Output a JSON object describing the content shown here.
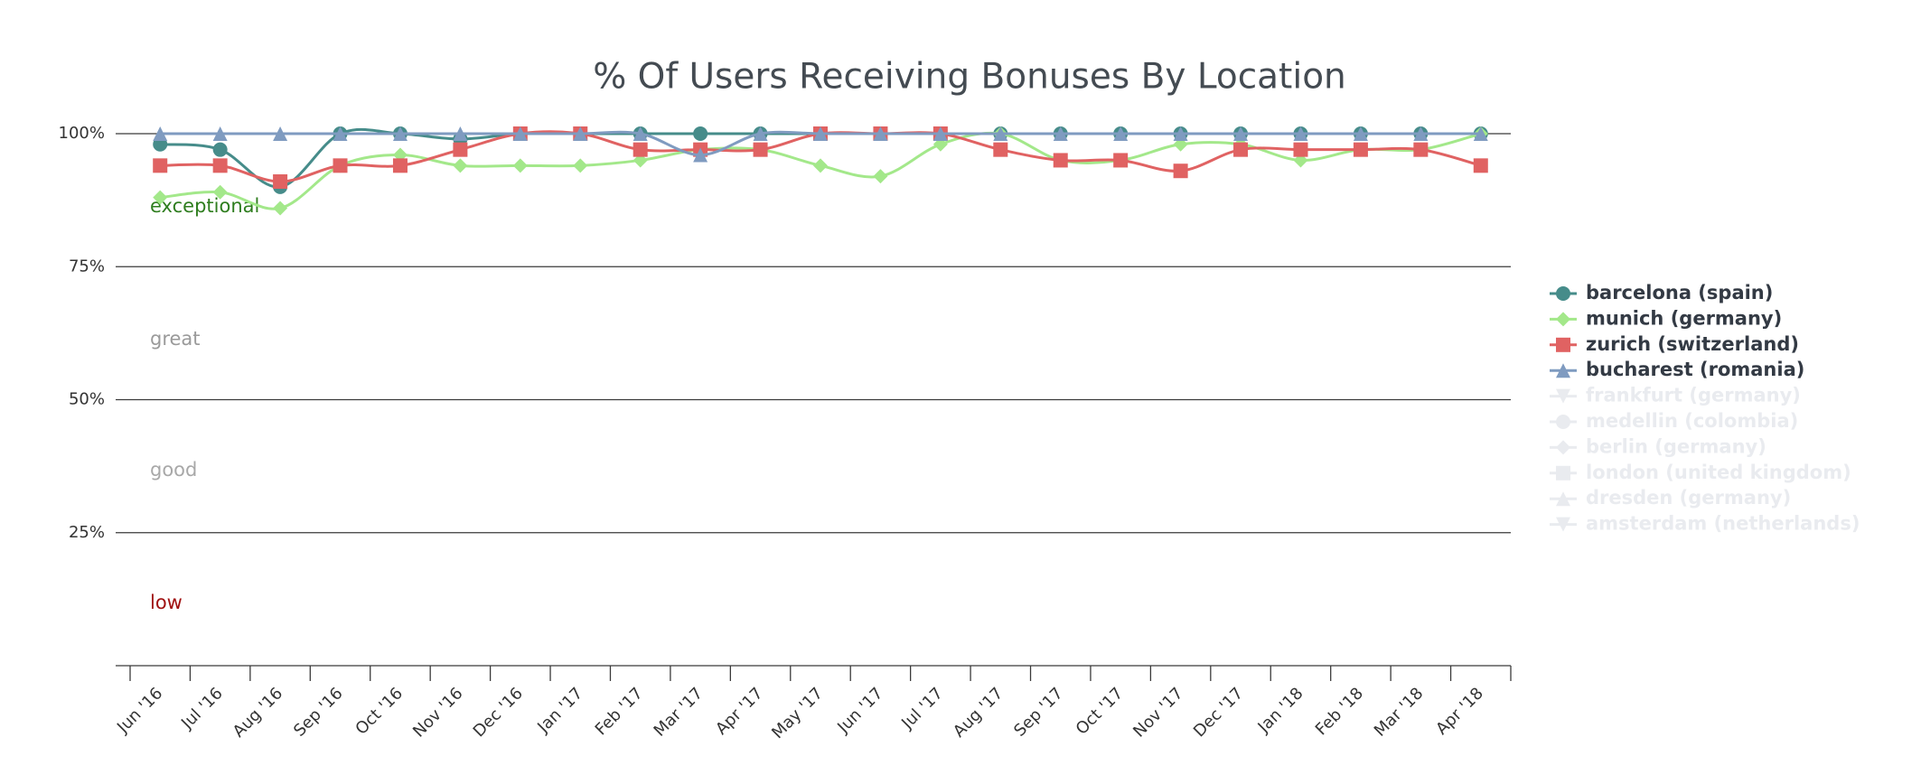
{
  "chart_data": {
    "type": "line",
    "title": "% Of Users Receiving Bonuses By Location",
    "categories": [
      "Jun '16",
      "Jul '16",
      "Aug '16",
      "Sep '16",
      "Oct '16",
      "Nov '16",
      "Dec '16",
      "Jan '17",
      "Feb '17",
      "Mar '17",
      "Apr '17",
      "May '17",
      "Jun '17",
      "Jul '17",
      "Aug '17",
      "Sep '17",
      "Oct '17",
      "Nov '17",
      "Dec '17",
      "Jan '18",
      "Feb '18",
      "Mar '18",
      "Apr '18"
    ],
    "ylim": [
      0,
      100
    ],
    "yticks": [
      {
        "value": 25,
        "label": "25%"
      },
      {
        "value": 50,
        "label": "50%"
      },
      {
        "value": 75,
        "label": "75%"
      },
      {
        "value": 100,
        "label": "100%"
      }
    ],
    "grid": true,
    "smooth": true,
    "legend": "right",
    "bands": [
      {
        "label": "exceptional",
        "color": "#2e7d1e"
      },
      {
        "label": "great",
        "color": "#9a9a9a"
      },
      {
        "label": "good",
        "color": "#a8a8a8"
      },
      {
        "label": "low",
        "color": "#a01010"
      }
    ],
    "series": [
      {
        "name": "barcelona (spain)",
        "color": "#468c8a",
        "marker": "circle",
        "visible": true,
        "values": [
          98,
          97,
          90,
          100,
          100,
          99,
          100,
          100,
          100,
          100,
          100,
          100,
          100,
          100,
          100,
          100,
          100,
          100,
          100,
          100,
          100,
          100,
          100
        ]
      },
      {
        "name": "munich (germany)",
        "color": "#a3e88a",
        "marker": "diamond",
        "visible": true,
        "values": [
          88,
          89,
          86,
          94,
          96,
          94,
          94,
          94,
          95,
          97,
          97,
          94,
          92,
          98,
          100,
          95,
          95,
          98,
          98,
          95,
          97,
          97,
          100
        ]
      },
      {
        "name": "zurich (switzerland)",
        "color": "#e06262",
        "marker": "square",
        "visible": true,
        "values": [
          94,
          94,
          91,
          94,
          94,
          97,
          100,
          100,
          97,
          97,
          97,
          100,
          100,
          100,
          97,
          95,
          95,
          93,
          97,
          97,
          97,
          97,
          94
        ]
      },
      {
        "name": "bucharest (romania)",
        "color": "#7f9bc0",
        "marker": "triangle",
        "visible": true,
        "values": [
          100,
          100,
          100,
          100,
          100,
          100,
          100,
          100,
          100,
          96,
          100,
          100,
          100,
          100,
          100,
          100,
          100,
          100,
          100,
          100,
          100,
          100,
          100
        ]
      },
      {
        "name": "frankfurt (germany)",
        "color": "#e9ebef",
        "marker": "triangle-down",
        "visible": false,
        "values": [
          null,
          null,
          null,
          null,
          null,
          null,
          null,
          null,
          null,
          null,
          null,
          null,
          null,
          null,
          null,
          null,
          null,
          null,
          null,
          null,
          null,
          null,
          null
        ]
      },
      {
        "name": "medellin (colombia)",
        "color": "#e9ebef",
        "marker": "circle",
        "visible": false,
        "values": [
          null,
          null,
          null,
          null,
          null,
          null,
          null,
          null,
          null,
          null,
          null,
          null,
          null,
          null,
          null,
          null,
          null,
          null,
          null,
          null,
          null,
          null,
          null
        ]
      },
      {
        "name": "berlin (germany)",
        "color": "#e9ebef",
        "marker": "diamond",
        "visible": false,
        "values": [
          null,
          null,
          null,
          null,
          null,
          null,
          null,
          null,
          null,
          null,
          null,
          null,
          null,
          null,
          null,
          null,
          null,
          null,
          null,
          null,
          null,
          null,
          null
        ]
      },
      {
        "name": "london (united kingdom)",
        "color": "#e9ebef",
        "marker": "square",
        "visible": false,
        "values": [
          null,
          null,
          null,
          null,
          null,
          null,
          null,
          null,
          null,
          null,
          null,
          null,
          null,
          null,
          null,
          null,
          null,
          null,
          null,
          null,
          null,
          null,
          null
        ]
      },
      {
        "name": "dresden (germany)",
        "color": "#e9ebef",
        "marker": "triangle",
        "visible": false,
        "values": [
          null,
          null,
          null,
          null,
          null,
          null,
          null,
          null,
          null,
          null,
          null,
          null,
          null,
          null,
          null,
          null,
          null,
          null,
          null,
          null,
          null,
          null,
          null
        ]
      },
      {
        "name": "amsterdam (netherlands)",
        "color": "#e9ebef",
        "marker": "triangle-down",
        "visible": false,
        "values": [
          null,
          null,
          null,
          null,
          null,
          null,
          null,
          null,
          null,
          null,
          null,
          null,
          null,
          null,
          null,
          null,
          null,
          null,
          null,
          null,
          null,
          null,
          null
        ]
      }
    ]
  }
}
